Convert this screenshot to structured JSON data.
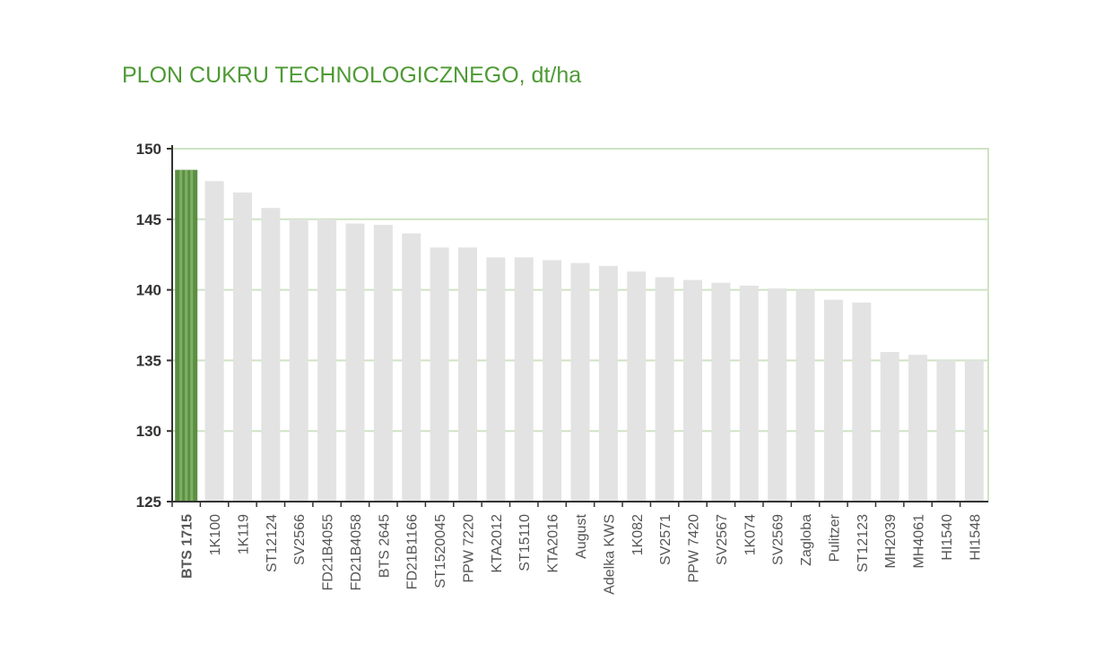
{
  "chart_data": {
    "type": "bar",
    "title": "PLON CUKRU TECHNOLOGICZNEGO, dt/ha",
    "xlabel": "",
    "ylabel": "",
    "ylim": [
      125,
      150
    ],
    "yticks": [
      125,
      130,
      135,
      140,
      145,
      150
    ],
    "grid": true,
    "categories": [
      "BTS 1715",
      "1K100",
      "1K119",
      "ST12124",
      "SV2566",
      "FD21B4055",
      "FD21B4058",
      "BTS 2645",
      "FD21B1166",
      "ST1520045",
      "PPW 7220",
      "KTA2012",
      "ST15110",
      "KTA2016",
      "August",
      "Adelka KWS",
      "1K082",
      "SV2571",
      "PPW 7420",
      "SV2567",
      "1K074",
      "SV2569",
      "Zagloba",
      "Pulitzer",
      "ST12123",
      "MH2039",
      "MH4061",
      "HI1540",
      "HI1548"
    ],
    "values": [
      148.5,
      147.7,
      146.9,
      145.8,
      145.0,
      145.0,
      144.7,
      144.6,
      144.0,
      143.0,
      143.0,
      142.3,
      142.3,
      142.1,
      141.9,
      141.7,
      141.3,
      140.9,
      140.7,
      140.5,
      140.3,
      140.1,
      140.0,
      139.3,
      139.1,
      135.6,
      135.4,
      135.0,
      135.0
    ],
    "highlight_index": 0,
    "colors": {
      "title": "#4e9a35",
      "bar": "#e3e3e3",
      "bar_highlight": "#5c8f45",
      "bar_highlight_inner": "#7fb061",
      "grid": "#cfe3c4",
      "axis": "#333333",
      "highlight_label": "#4e9a35",
      "label": "#555555"
    }
  }
}
